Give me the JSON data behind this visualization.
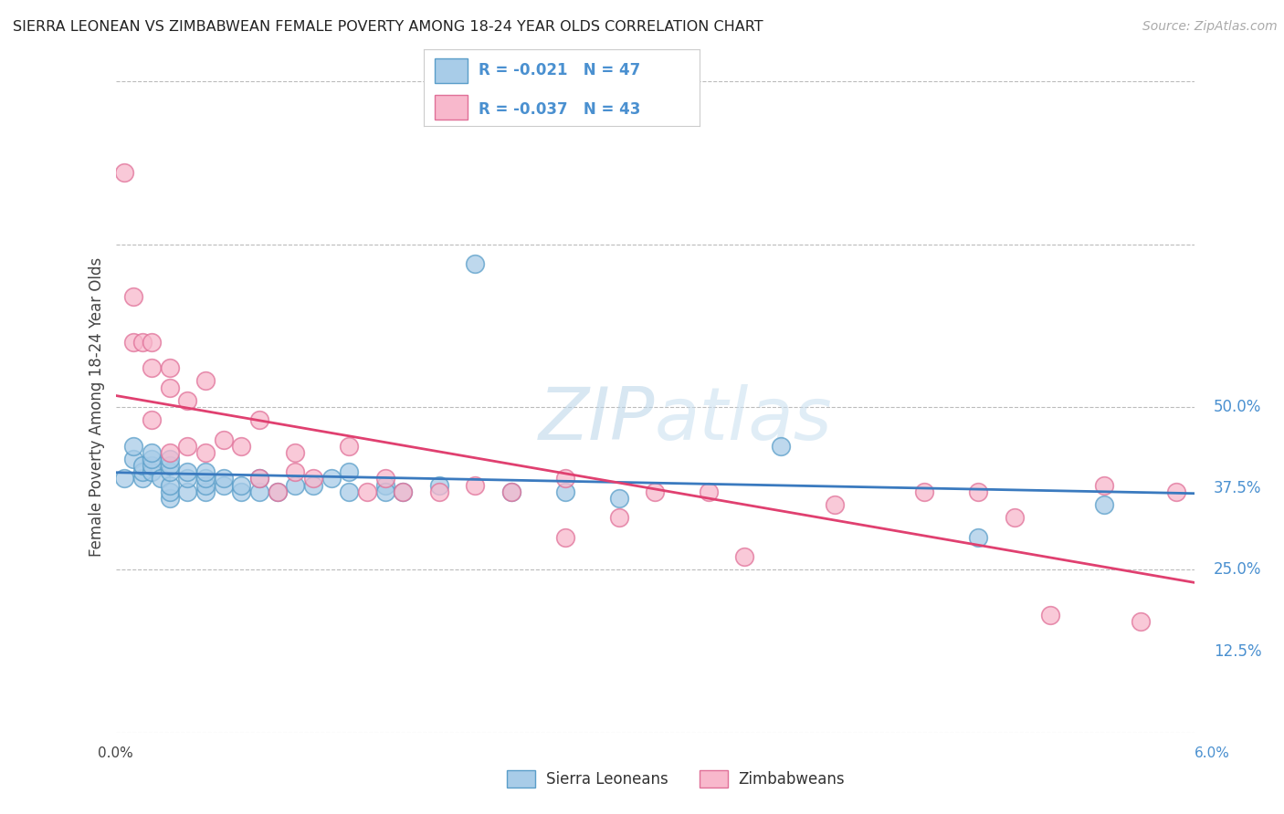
{
  "title": "SIERRA LEONEAN VS ZIMBABWEAN FEMALE POVERTY AMONG 18-24 YEAR OLDS CORRELATION CHART",
  "source": "Source: ZipAtlas.com",
  "ylabel": "Female Poverty Among 18-24 Year Olds",
  "xmin": 0.0,
  "xmax": 0.06,
  "ymin": 0.0,
  "ymax": 0.5,
  "yticks": [
    0.0,
    0.125,
    0.25,
    0.375,
    0.5
  ],
  "legend_label1": "Sierra Leoneans",
  "legend_label2": "Zimbabweans",
  "R1": "-0.021",
  "N1": "47",
  "R2": "-0.037",
  "N2": "43",
  "color_blue_fill": "#a8cce8",
  "color_blue_edge": "#5a9ec9",
  "color_pink_fill": "#f8b8cc",
  "color_pink_edge": "#e07098",
  "color_blue_line": "#3a7abf",
  "color_pink_line": "#e04070",
  "color_grid": "#bbbbbb",
  "color_right_axis": "#4a90d0",
  "color_watermark": "#ccddf0",
  "background_color": "#ffffff",
  "sierra_x": [
    0.0005,
    0.001,
    0.001,
    0.0015,
    0.0015,
    0.0015,
    0.002,
    0.002,
    0.002,
    0.002,
    0.0025,
    0.003,
    0.003,
    0.003,
    0.003,
    0.003,
    0.003,
    0.004,
    0.004,
    0.004,
    0.005,
    0.005,
    0.005,
    0.005,
    0.006,
    0.006,
    0.007,
    0.007,
    0.008,
    0.008,
    0.009,
    0.01,
    0.011,
    0.012,
    0.013,
    0.013,
    0.015,
    0.015,
    0.016,
    0.018,
    0.02,
    0.022,
    0.025,
    0.028,
    0.037,
    0.048,
    0.055
  ],
  "sierra_y": [
    0.195,
    0.21,
    0.22,
    0.195,
    0.2,
    0.205,
    0.2,
    0.205,
    0.21,
    0.215,
    0.195,
    0.18,
    0.185,
    0.19,
    0.2,
    0.205,
    0.21,
    0.185,
    0.195,
    0.2,
    0.185,
    0.19,
    0.195,
    0.2,
    0.19,
    0.195,
    0.185,
    0.19,
    0.185,
    0.195,
    0.185,
    0.19,
    0.19,
    0.195,
    0.2,
    0.185,
    0.19,
    0.185,
    0.185,
    0.19,
    0.36,
    0.185,
    0.185,
    0.18,
    0.22,
    0.15,
    0.175
  ],
  "zimbabwe_x": [
    0.0005,
    0.001,
    0.001,
    0.0015,
    0.002,
    0.002,
    0.002,
    0.003,
    0.003,
    0.003,
    0.004,
    0.004,
    0.005,
    0.005,
    0.006,
    0.007,
    0.008,
    0.008,
    0.009,
    0.01,
    0.01,
    0.011,
    0.013,
    0.014,
    0.015,
    0.016,
    0.018,
    0.02,
    0.022,
    0.025,
    0.025,
    0.028,
    0.03,
    0.033,
    0.035,
    0.04,
    0.045,
    0.048,
    0.05,
    0.052,
    0.055,
    0.057,
    0.059
  ],
  "zimbabwe_y": [
    0.43,
    0.3,
    0.335,
    0.3,
    0.28,
    0.3,
    0.24,
    0.28,
    0.265,
    0.215,
    0.255,
    0.22,
    0.27,
    0.215,
    0.225,
    0.22,
    0.24,
    0.195,
    0.185,
    0.2,
    0.215,
    0.195,
    0.22,
    0.185,
    0.195,
    0.185,
    0.185,
    0.19,
    0.185,
    0.195,
    0.15,
    0.165,
    0.185,
    0.185,
    0.135,
    0.175,
    0.185,
    0.185,
    0.165,
    0.09,
    0.19,
    0.085,
    0.185
  ]
}
